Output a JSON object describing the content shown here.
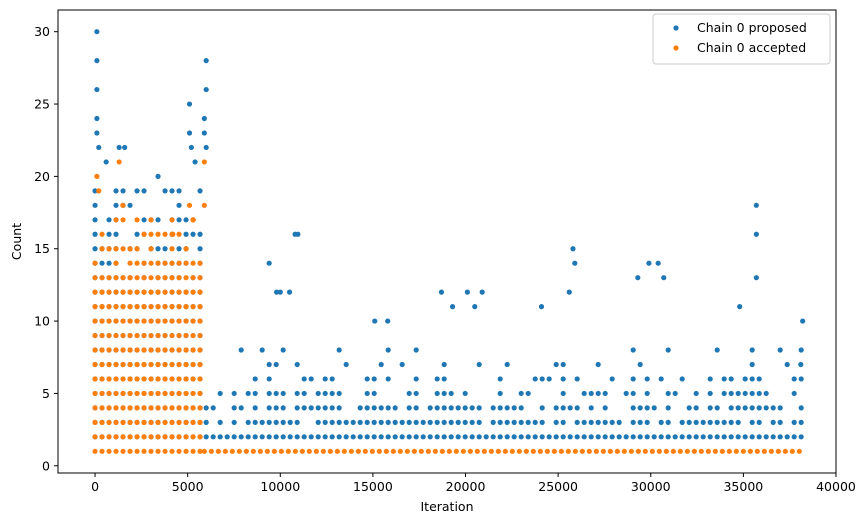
{
  "chart_data": {
    "type": "scatter",
    "title": "",
    "xlabel": "Iteration",
    "ylabel": "Count",
    "xlim": [
      -2000,
      40000
    ],
    "ylim": [
      -0.5,
      31.5
    ],
    "x_ticks": [
      0,
      5000,
      10000,
      15000,
      20000,
      25000,
      30000,
      35000,
      40000
    ],
    "y_ticks": [
      0,
      5,
      10,
      15,
      20,
      25,
      30
    ],
    "grid": false,
    "legend_position": "top-right",
    "series": [
      {
        "name": "Chain 0 proposed",
        "color": "#1f77b4",
        "marker": "dot",
        "regions": [
          {
            "x_range": [
              0,
              6000
            ],
            "y_values": [
              2,
              3,
              4,
              5,
              6,
              7,
              8,
              9,
              10,
              11,
              12,
              13,
              14,
              15,
              16,
              17,
              18,
              19,
              20
            ]
          },
          {
            "x_range": [
              6000,
              38300
            ],
            "y_values": [
              2,
              3,
              4,
              5,
              6,
              7,
              8
            ]
          }
        ],
        "points": [
          {
            "x": 100,
            "y": 30
          },
          {
            "x": 100,
            "y": 28
          },
          {
            "x": 100,
            "y": 26
          },
          {
            "x": 100,
            "y": 24
          },
          {
            "x": 100,
            "y": 23
          },
          {
            "x": 200,
            "y": 22
          },
          {
            "x": 600,
            "y": 21
          },
          {
            "x": 1300,
            "y": 22
          },
          {
            "x": 1600,
            "y": 22
          },
          {
            "x": 5100,
            "y": 25
          },
          {
            "x": 5100,
            "y": 23
          },
          {
            "x": 5200,
            "y": 22
          },
          {
            "x": 5400,
            "y": 21
          },
          {
            "x": 6000,
            "y": 28
          },
          {
            "x": 6000,
            "y": 26
          },
          {
            "x": 5900,
            "y": 24
          },
          {
            "x": 5900,
            "y": 23
          },
          {
            "x": 6000,
            "y": 22
          },
          {
            "x": 9400,
            "y": 14
          },
          {
            "x": 9800,
            "y": 12
          },
          {
            "x": 10000,
            "y": 12
          },
          {
            "x": 10500,
            "y": 12
          },
          {
            "x": 10800,
            "y": 16
          },
          {
            "x": 10950,
            "y": 16
          },
          {
            "x": 15800,
            "y": 10
          },
          {
            "x": 15100,
            "y": 10
          },
          {
            "x": 18700,
            "y": 12
          },
          {
            "x": 19300,
            "y": 11
          },
          {
            "x": 20100,
            "y": 12
          },
          {
            "x": 20500,
            "y": 11
          },
          {
            "x": 20900,
            "y": 12
          },
          {
            "x": 24100,
            "y": 11
          },
          {
            "x": 25800,
            "y": 15
          },
          {
            "x": 25900,
            "y": 14
          },
          {
            "x": 25600,
            "y": 12
          },
          {
            "x": 29300,
            "y": 13
          },
          {
            "x": 29900,
            "y": 14
          },
          {
            "x": 30400,
            "y": 14
          },
          {
            "x": 30700,
            "y": 13
          },
          {
            "x": 34800,
            "y": 11
          },
          {
            "x": 35700,
            "y": 18
          },
          {
            "x": 35700,
            "y": 16
          },
          {
            "x": 35700,
            "y": 13
          },
          {
            "x": 38200,
            "y": 10
          },
          {
            "x": 38100,
            "y": 7
          }
        ]
      },
      {
        "name": "Chain 0 accepted",
        "color": "#ff7f0e",
        "marker": "dot",
        "regions": [
          {
            "x_range": [
              0,
              6000
            ],
            "y_values": [
              1,
              2,
              3,
              4,
              5,
              6,
              7,
              8,
              9,
              10,
              11,
              12,
              13,
              14,
              15,
              16,
              17
            ]
          },
          {
            "x_range": [
              5900,
              38300
            ],
            "y_values": [
              1
            ]
          }
        ],
        "points": [
          {
            "x": 100,
            "y": 20
          },
          {
            "x": 200,
            "y": 19
          },
          {
            "x": 1300,
            "y": 21
          },
          {
            "x": 1500,
            "y": 18
          },
          {
            "x": 5100,
            "y": 18
          },
          {
            "x": 5300,
            "y": 17
          },
          {
            "x": 5900,
            "y": 21
          },
          {
            "x": 5900,
            "y": 18
          },
          {
            "x": 4200,
            "y": 16
          }
        ]
      }
    ]
  }
}
